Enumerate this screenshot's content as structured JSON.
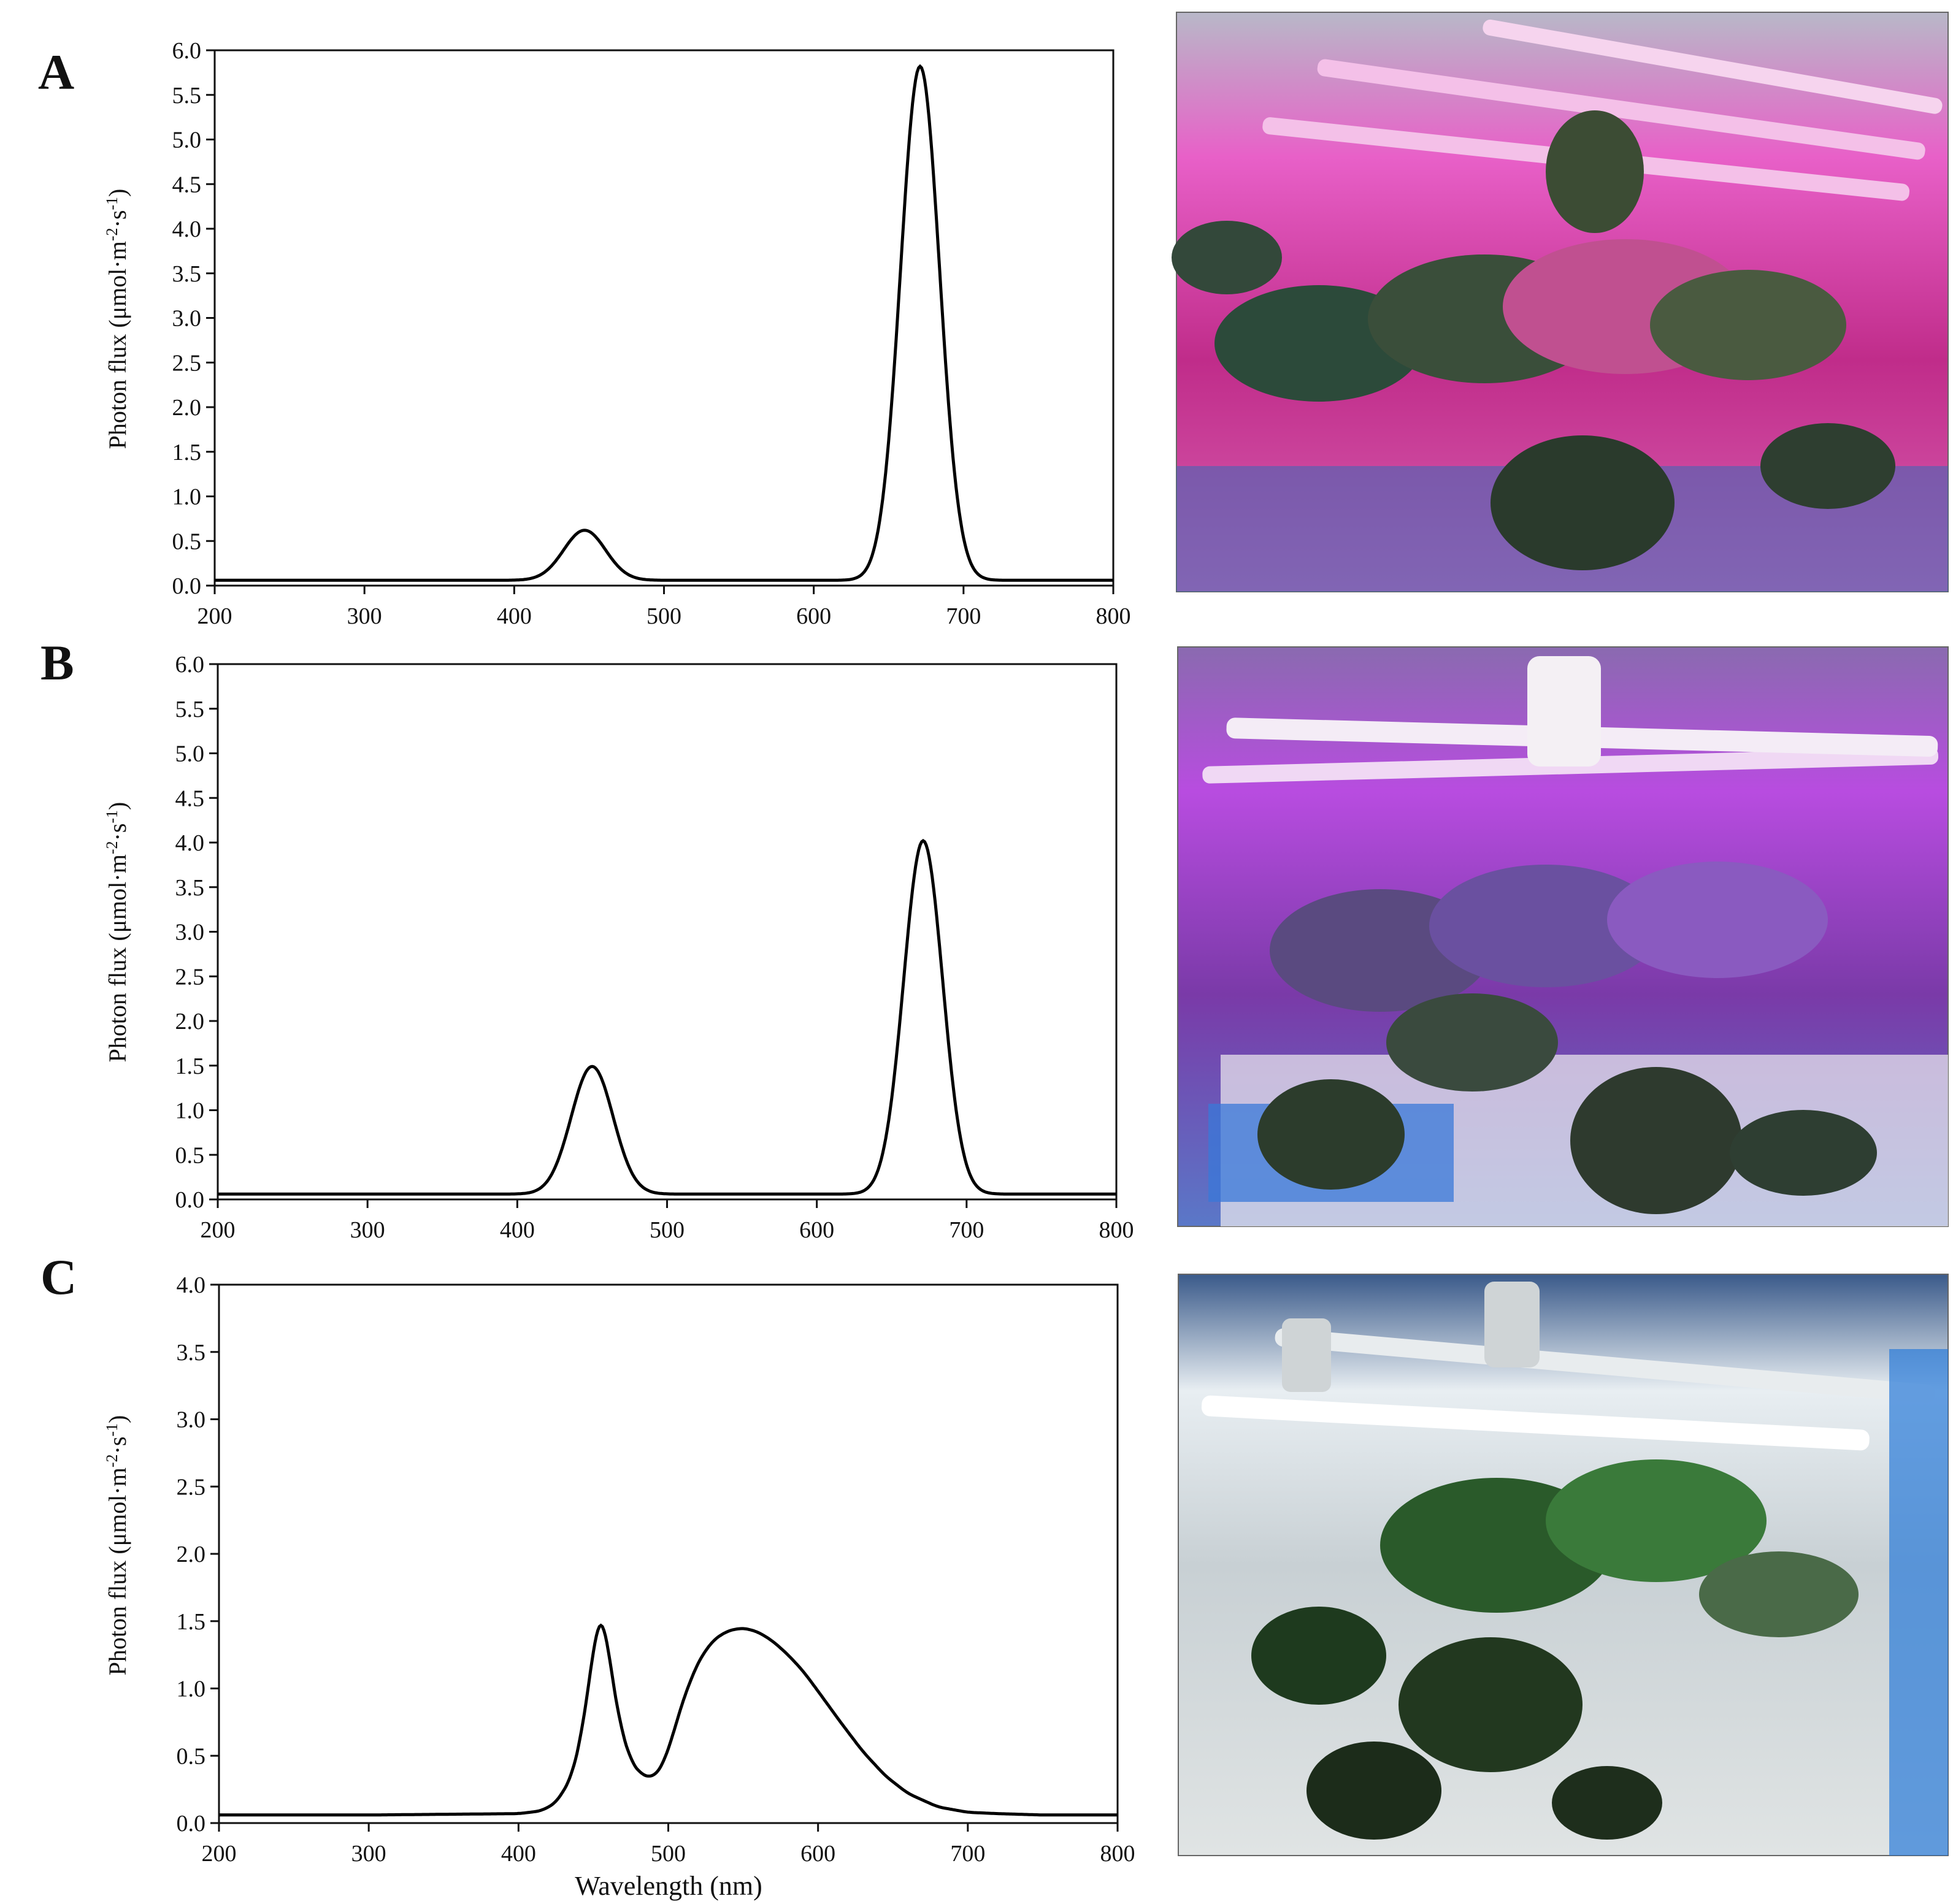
{
  "panels": [
    {
      "label": "A",
      "photo_tint": "#ff38b8",
      "chart_data": {
        "type": "line",
        "xlabel": "",
        "ylabel": "Photon flux (μmol·m-2·s-1)",
        "xlim": [
          200,
          800
        ],
        "ylim": [
          0,
          6
        ],
        "xticks": [
          200,
          300,
          400,
          500,
          600,
          700,
          800
        ],
        "yticks": [
          0.0,
          0.5,
          1.0,
          1.5,
          2.0,
          2.5,
          3.0,
          3.5,
          4.0,
          4.5,
          5.0,
          5.5,
          6.0
        ],
        "baseline": 0.06,
        "peaks": [
          {
            "center": 447,
            "height": 0.56,
            "width": 14
          },
          {
            "center": 671,
            "height": 5.76,
            "width": 13
          }
        ],
        "series": [
          {
            "x": [
              200,
              300,
              400,
              420,
              435,
              447,
              460,
              480,
              500,
              550,
              600,
              620,
              640,
              655,
              665,
              671,
              678,
              690,
              700,
              720,
              800
            ],
            "y": [
              0.06,
              0.06,
              0.06,
              0.1,
              0.35,
              0.62,
              0.42,
              0.14,
              0.07,
              0.06,
              0.07,
              0.12,
              0.4,
              1.6,
              4.3,
              5.82,
              4.6,
              1.2,
              0.25,
              0.07,
              0.06
            ]
          }
        ]
      }
    },
    {
      "label": "B",
      "photo_tint": "#d84cff",
      "chart_data": {
        "type": "line",
        "xlabel": "",
        "ylabel": "Photon flux (μmol·m-2·s-1)",
        "xlim": [
          200,
          800
        ],
        "ylim": [
          0,
          6
        ],
        "xticks": [
          200,
          300,
          400,
          500,
          600,
          700,
          800
        ],
        "yticks": [
          0.0,
          0.5,
          1.0,
          1.5,
          2.0,
          2.5,
          3.0,
          3.5,
          4.0,
          4.5,
          5.0,
          5.5,
          6.0
        ],
        "baseline": 0.06,
        "peaks": [
          {
            "center": 450,
            "height": 1.43,
            "width": 14
          },
          {
            "center": 671,
            "height": 3.96,
            "width": 13
          }
        ],
        "series": [
          {
            "x": [
              200,
              300,
              400,
              420,
              435,
              450,
              462,
              480,
              500,
              550,
              600,
              620,
              640,
              655,
              665,
              671,
              678,
              690,
              700,
              720,
              800
            ],
            "y": [
              0.06,
              0.06,
              0.06,
              0.15,
              0.7,
              1.5,
              1.0,
              0.3,
              0.09,
              0.06,
              0.07,
              0.12,
              0.35,
              1.2,
              3.0,
              4.02,
              3.2,
              0.9,
              0.2,
              0.07,
              0.06
            ]
          }
        ]
      }
    },
    {
      "label": "C",
      "photo_tint": "#ffffff",
      "chart_data": {
        "type": "line",
        "xlabel": "Wavelength (nm)",
        "ylabel": "Photon flux (μmol·m-2·s-1)",
        "xlim": [
          200,
          800
        ],
        "ylim": [
          0,
          4
        ],
        "xticks": [
          200,
          300,
          400,
          500,
          600,
          700,
          800
        ],
        "yticks": [
          0.0,
          0.5,
          1.0,
          1.5,
          2.0,
          2.5,
          3.0,
          3.5,
          4.0
        ],
        "series": [
          {
            "x": [
              200,
              300,
              400,
              415,
              425,
              435,
              442,
              448,
              452,
              455,
              458,
              462,
              468,
              475,
              482,
              488,
              492,
              497,
              503,
              510,
              520,
              530,
              540,
              550,
              560,
              570,
              580,
              590,
              600,
              615,
              630,
              645,
              660,
              680,
              700,
              720,
              750,
              800
            ],
            "y": [
              0.06,
              0.06,
              0.07,
              0.09,
              0.15,
              0.33,
              0.65,
              1.12,
              1.45,
              1.56,
              1.45,
              1.12,
              0.72,
              0.46,
              0.36,
              0.34,
              0.36,
              0.45,
              0.65,
              0.92,
              1.2,
              1.36,
              1.43,
              1.45,
              1.42,
              1.35,
              1.25,
              1.13,
              0.98,
              0.75,
              0.53,
              0.35,
              0.22,
              0.12,
              0.08,
              0.07,
              0.06,
              0.06
            ]
          }
        ]
      }
    }
  ]
}
